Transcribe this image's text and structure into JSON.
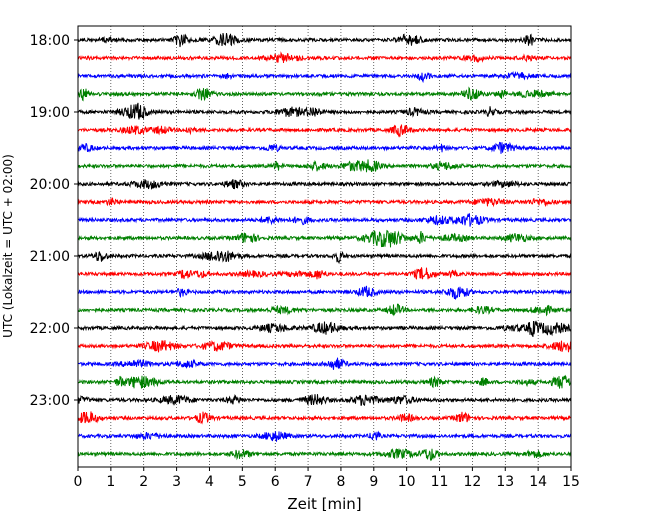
{
  "chart_data": {
    "type": "line",
    "title": "",
    "xlabel": "Zeit  [min]",
    "ylabel": "UTC (Lokalzeit = UTC + 02:00)",
    "xlim": [
      0,
      15
    ],
    "x_ticks": [
      "0",
      "1",
      "2",
      "3",
      "4",
      "5",
      "6",
      "7",
      "8",
      "9",
      "10",
      "11",
      "12",
      "13",
      "14",
      "15"
    ],
    "y_ticks": [
      "18:00",
      "19:00",
      "20:00",
      "21:00",
      "22:00",
      "23:00"
    ],
    "trace_interval_min": 15,
    "trace_count": 24,
    "trace_start": "18:00",
    "trace_colors": [
      "#000000",
      "#ff0000",
      "#0000ff",
      "#008000"
    ],
    "grid_x": true,
    "grid_style": "dotted"
  }
}
